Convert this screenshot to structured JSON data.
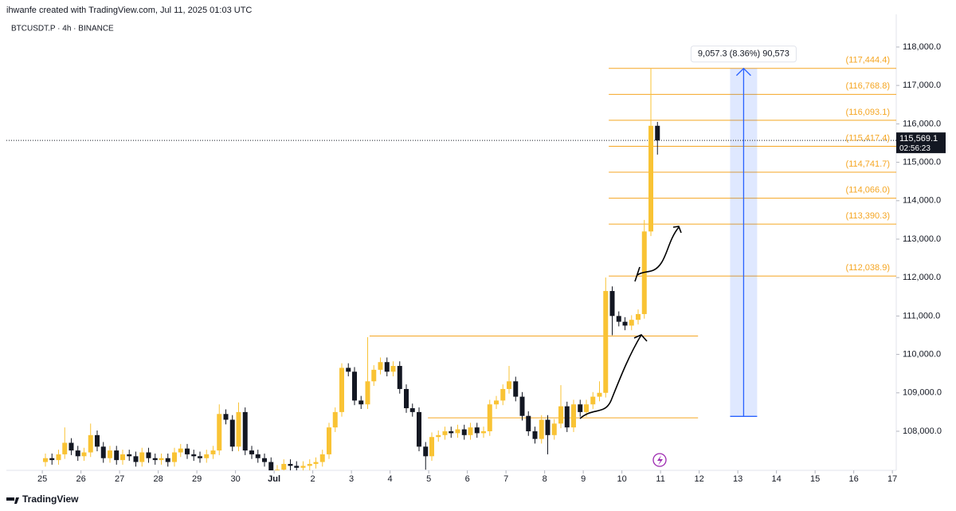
{
  "header": "ihwanfe created with TradingView.com, Jul 11, 2025 01:03 UTC",
  "footer": "TradingView",
  "chart_data": {
    "type": "candlestick",
    "title": "BTCUSDT.P · 4h · BINANCE",
    "up_color": "#f9c334",
    "down_color": "#131722",
    "x": [
      0.08,
      0.25,
      0.42,
      0.58,
      0.75,
      0.92,
      1.08,
      1.25,
      1.42,
      1.58,
      1.75,
      1.92,
      2.08,
      2.25,
      2.42,
      2.58,
      2.75,
      2.92,
      3.08,
      3.25,
      3.42,
      3.58,
      3.75,
      3.92,
      4.08,
      4.25,
      4.42,
      4.58,
      4.75,
      4.92,
      5.08,
      5.25,
      5.42,
      5.58,
      5.75,
      5.92,
      6.08,
      6.25,
      6.42,
      6.58,
      6.75,
      6.92,
      7.08,
      7.25,
      7.42,
      7.58,
      7.75,
      7.92,
      8.08,
      8.25,
      8.42,
      8.58,
      8.75,
      8.92,
      9.08,
      9.25,
      9.42,
      9.58,
      9.75,
      9.92,
      10.08,
      10.25,
      10.42,
      10.58,
      10.75,
      10.92,
      11.08,
      11.25,
      11.42,
      11.58,
      11.75,
      11.92,
      12.08,
      12.25,
      12.42,
      12.58,
      12.75,
      12.92,
      13.08,
      13.25,
      13.42,
      13.58,
      13.75,
      13.92,
      14.08,
      14.25,
      14.42,
      14.58,
      14.75,
      14.92,
      15.08,
      15.25,
      15.42,
      15.58,
      15.75,
      15.92
    ],
    "open": [
      107200,
      107300,
      107250,
      107400,
      107700,
      107500,
      107350,
      107450,
      107900,
      107600,
      107300,
      107500,
      107250,
      107400,
      107350,
      107200,
      107450,
      107300,
      107250,
      107300,
      107200,
      107450,
      107550,
      107400,
      107350,
      107300,
      107400,
      107500,
      108450,
      108300,
      107600,
      108500,
      107500,
      107400,
      107300,
      107200,
      106950,
      107000,
      107150,
      107100,
      107050,
      107100,
      107150,
      107200,
      107400,
      108100,
      108500,
      109650,
      109550,
      108800,
      108700,
      109300,
      109600,
      109800,
      109550,
      109700,
      109100,
      108600,
      108500,
      107600,
      107350,
      107850,
      107900,
      108000,
      107950,
      108050,
      107900,
      108100,
      107950,
      108000,
      108700,
      108800,
      109100,
      109300,
      108900,
      108400,
      108000,
      107800,
      108300,
      107900,
      108200,
      108650,
      108100,
      108700,
      108500,
      108700,
      108900,
      109000,
      111650,
      111000,
      110850,
      110750,
      110900,
      111050,
      113200,
      115950
    ],
    "high": [
      107420,
      107420,
      107520,
      108100,
      107820,
      107620,
      107570,
      108200,
      108020,
      107720,
      107620,
      107620,
      107520,
      107520,
      107470,
      107570,
      107570,
      107420,
      107420,
      107420,
      107570,
      107670,
      107670,
      107520,
      107470,
      107520,
      107620,
      108700,
      108570,
      108420,
      108750,
      108620,
      107620,
      107520,
      107420,
      107320,
      107120,
      107270,
      107270,
      107220,
      107220,
      107270,
      107320,
      107520,
      108220,
      108620,
      109770,
      109770,
      109670,
      108920,
      110450,
      109720,
      109920,
      109920,
      109820,
      109820,
      109220,
      108720,
      108620,
      107720,
      107970,
      108020,
      108120,
      108120,
      108170,
      108170,
      108220,
      108220,
      108120,
      108820,
      108920,
      109220,
      109700,
      109420,
      109020,
      108520,
      108120,
      108420,
      108420,
      108320,
      109200,
      108770,
      108820,
      108820,
      108820,
      109020,
      109300,
      112000,
      111770,
      111120,
      110970,
      111020,
      111170,
      113500,
      117444,
      116050
    ],
    "low": [
      107080,
      107130,
      107130,
      107280,
      107380,
      107230,
      107230,
      107330,
      107480,
      107180,
      107180,
      107130,
      107130,
      107230,
      107080,
      107080,
      107180,
      107130,
      107130,
      107080,
      107080,
      107330,
      107280,
      107230,
      107180,
      107180,
      107280,
      107380,
      108180,
      107480,
      107480,
      107380,
      107280,
      107180,
      107080,
      106830,
      106830,
      106880,
      106980,
      106930,
      106930,
      106980,
      107030,
      107080,
      107280,
      107980,
      108380,
      109430,
      108680,
      108580,
      108580,
      109180,
      109480,
      109430,
      109430,
      108980,
      108480,
      108380,
      107480,
      107000,
      107230,
      107730,
      107780,
      107830,
      107830,
      107780,
      107780,
      107830,
      107830,
      107880,
      108580,
      108680,
      108980,
      108780,
      108280,
      107880,
      107680,
      107680,
      107400,
      107780,
      108080,
      107980,
      107980,
      108380,
      108380,
      108580,
      108780,
      108880,
      110500,
      110730,
      110630,
      110630,
      110780,
      110930,
      113080,
      115200
    ],
    "close": [
      107300,
      107250,
      107400,
      107700,
      107500,
      107350,
      107450,
      107900,
      107600,
      107300,
      107500,
      107250,
      107400,
      107350,
      107200,
      107450,
      107300,
      107250,
      107300,
      107200,
      107450,
      107550,
      107400,
      107350,
      107300,
      107400,
      107500,
      108450,
      108300,
      107600,
      108500,
      107500,
      107400,
      107300,
      107200,
      106950,
      107000,
      107150,
      107100,
      107050,
      107100,
      107150,
      107200,
      107400,
      108100,
      108500,
      109650,
      109550,
      108800,
      108700,
      109300,
      109600,
      109800,
      109550,
      109700,
      109100,
      108600,
      108500,
      107600,
      107350,
      107850,
      107900,
      108000,
      107950,
      108050,
      107900,
      108100,
      107950,
      108000,
      108700,
      108800,
      109100,
      109300,
      108900,
      108400,
      108000,
      107800,
      108300,
      107900,
      108200,
      108650,
      108100,
      108700,
      108500,
      108700,
      108900,
      109000,
      111650,
      111000,
      110850,
      110750,
      110900,
      111050,
      113200,
      115950,
      115569.1
    ],
    "xlim": [
      -0.93,
      22.1
    ],
    "ylim": [
      106983,
      118850
    ],
    "xticks": [
      {
        "value": 0,
        "label": "25"
      },
      {
        "value": 1,
        "label": "26"
      },
      {
        "value": 2,
        "label": "27"
      },
      {
        "value": 3,
        "label": "28"
      },
      {
        "value": 4,
        "label": "29"
      },
      {
        "value": 5,
        "label": "30"
      },
      {
        "value": 6,
        "label": "Jul"
      },
      {
        "value": 7,
        "label": "2"
      },
      {
        "value": 8,
        "label": "3"
      },
      {
        "value": 9,
        "label": "4"
      },
      {
        "value": 10,
        "label": "5"
      },
      {
        "value": 11,
        "label": "6"
      },
      {
        "value": 12,
        "label": "7"
      },
      {
        "value": 13,
        "label": "8"
      },
      {
        "value": 14,
        "label": "9"
      },
      {
        "value": 15,
        "label": "10"
      },
      {
        "value": 16,
        "label": "11"
      },
      {
        "value": 17,
        "label": "12"
      },
      {
        "value": 18,
        "label": "13"
      },
      {
        "value": 19,
        "label": "14"
      },
      {
        "value": 20,
        "label": "15"
      },
      {
        "value": 21,
        "label": "16"
      },
      {
        "value": 22,
        "label": "17"
      }
    ],
    "yticks": [
      {
        "value": 108000,
        "label": "108,000.0"
      },
      {
        "value": 109000,
        "label": "109,000.0"
      },
      {
        "value": 110000,
        "label": "110,000.0"
      },
      {
        "value": 111000,
        "label": "111,000.0"
      },
      {
        "value": 112000,
        "label": "112,000.0"
      },
      {
        "value": 113000,
        "label": "113,000.0"
      },
      {
        "value": 114000,
        "label": "114,000.0"
      },
      {
        "value": 115000,
        "label": "115,000.0"
      },
      {
        "value": 116000,
        "label": "116,000.0"
      },
      {
        "value": 117000,
        "label": "117,000.0"
      },
      {
        "value": 118000,
        "label": "118,000.0"
      }
    ],
    "fib_start": 14.66,
    "fib_color": "#f5a623",
    "fib_levels": [
      {
        "value": 117444.4,
        "label": "(117,444.4)"
      },
      {
        "value": 116768.8,
        "label": "(116,768.8)"
      },
      {
        "value": 116093.1,
        "label": "(116,093.1)"
      },
      {
        "value": 115417.4,
        "label": "(115,417.4)"
      },
      {
        "value": 114741.7,
        "label": "(114,741.7)"
      },
      {
        "value": 114066.0,
        "label": "(114,066.0)"
      },
      {
        "value": 113390.3,
        "label": "(113,390.3)"
      },
      {
        "value": 112038.9,
        "label": "(112,038.9)"
      }
    ],
    "support_lines": [
      {
        "value": 110480,
        "x": [
          8.47,
          16.97
        ]
      },
      {
        "value": 108350,
        "x": [
          9.98,
          16.97
        ]
      }
    ],
    "measure": {
      "label": "9,057.3 (8.36%) 90,573",
      "from": 108387.1,
      "to": 117444.4,
      "x": [
        17.8,
        18.5
      ]
    },
    "current_price": {
      "value": 115569.1,
      "label": "115,569.1"
    },
    "countdown": "02:56:23"
  }
}
